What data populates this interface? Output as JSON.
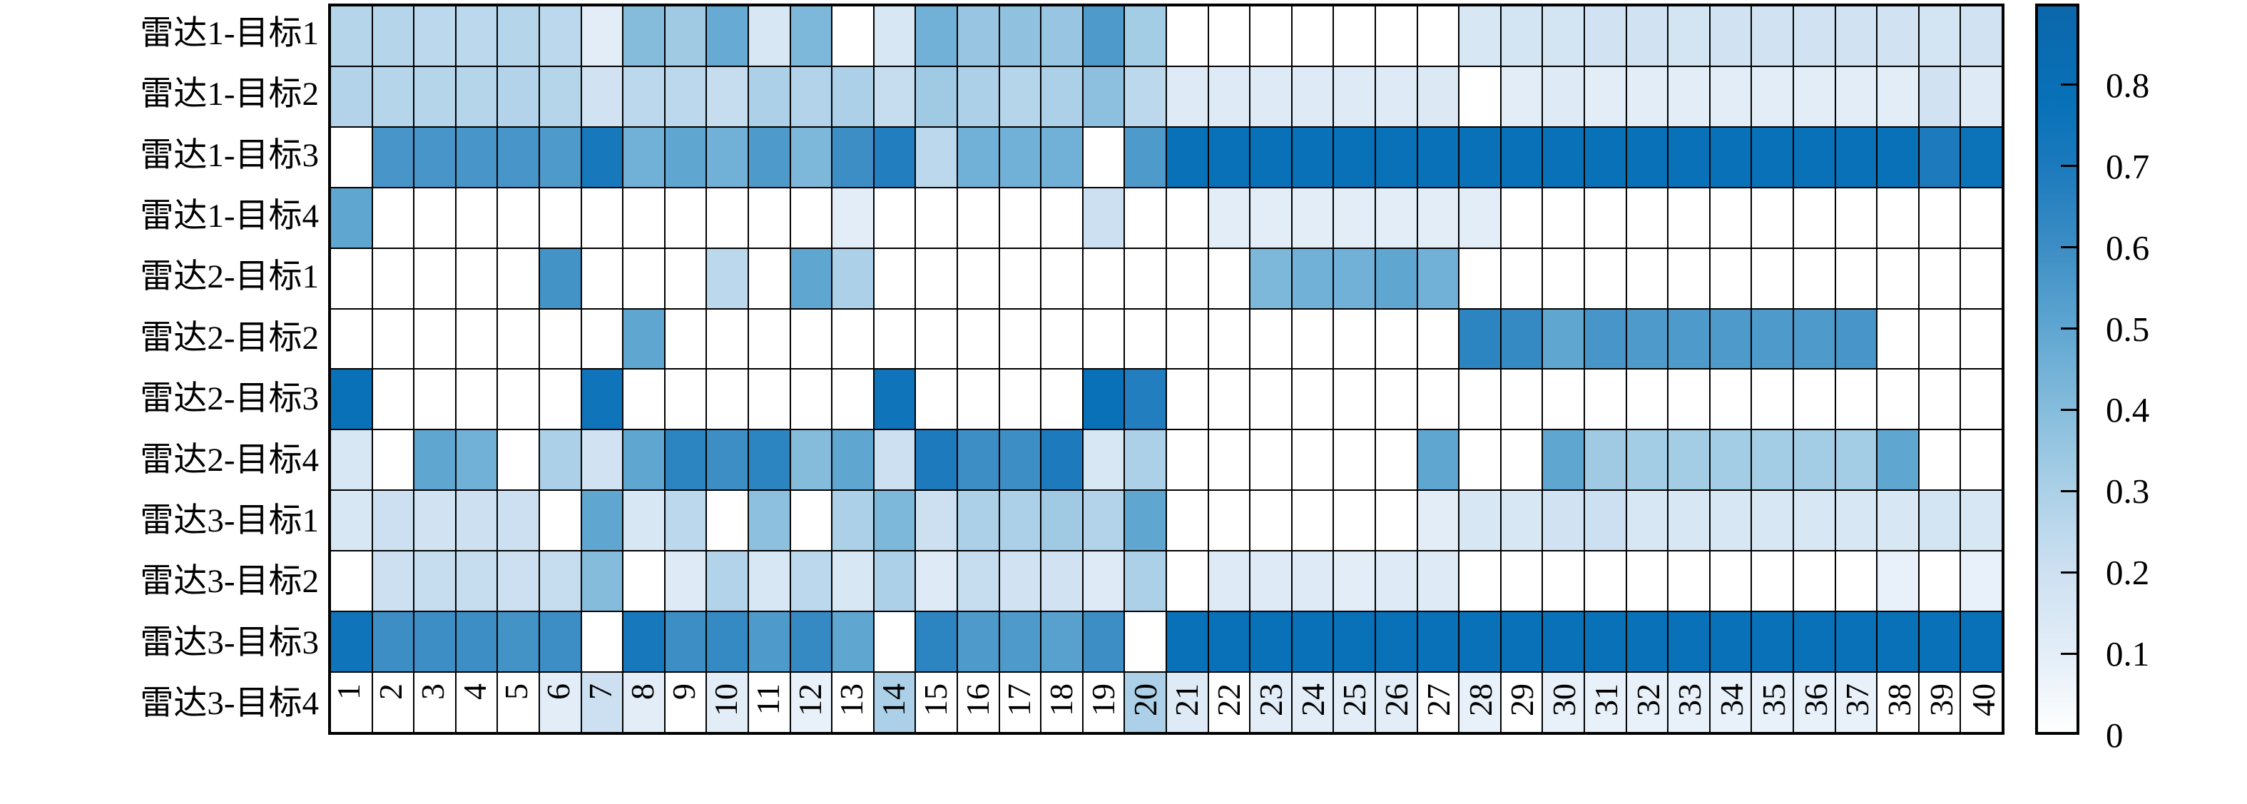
{
  "chart_data": {
    "type": "heatmap",
    "title": "",
    "xlabel": "",
    "ylabel": "",
    "row_labels": [
      "雷达1-目标1",
      "雷达1-目标2",
      "雷达1-目标3",
      "雷达1-目标4",
      "雷达2-目标1",
      "雷达2-目标2",
      "雷达2-目标3",
      "雷达2-目标4",
      "雷达3-目标1",
      "雷达3-目标2",
      "雷达3-目标3",
      "雷达3-目标4"
    ],
    "col_labels": [
      "1",
      "2",
      "3",
      "4",
      "5",
      "6",
      "7",
      "8",
      "9",
      "10",
      "11",
      "12",
      "13",
      "14",
      "15",
      "16",
      "17",
      "18",
      "19",
      "20",
      "21",
      "22",
      "23",
      "24",
      "25",
      "26",
      "27",
      "28",
      "29",
      "30",
      "31",
      "32",
      "33",
      "34",
      "35",
      "36",
      "37",
      "38",
      "39",
      "40"
    ],
    "values": [
      [
        0.27,
        0.27,
        0.25,
        0.25,
        0.27,
        0.25,
        0.1,
        0.4,
        0.33,
        0.48,
        0.15,
        0.42,
        0,
        0.15,
        0.45,
        0.35,
        0.37,
        0.35,
        0.55,
        0.32,
        0,
        0,
        0,
        0,
        0,
        0,
        0,
        0.15,
        0.17,
        0.17,
        0.18,
        0.18,
        0.17,
        0.18,
        0.18,
        0.18,
        0.18,
        0.18,
        0.17,
        0.18
      ],
      [
        0.28,
        0.27,
        0.27,
        0.27,
        0.28,
        0.27,
        0.18,
        0.25,
        0.25,
        0.22,
        0.3,
        0.28,
        0.3,
        0.22,
        0.33,
        0.3,
        0.27,
        0.3,
        0.38,
        0.25,
        0.12,
        0.12,
        0.12,
        0.12,
        0.12,
        0.12,
        0.13,
        0,
        0.1,
        0.12,
        0.1,
        0.1,
        0.1,
        0.1,
        0.1,
        0.1,
        0.1,
        0.1,
        0.18,
        0.12
      ],
      [
        0,
        0.57,
        0.57,
        0.57,
        0.57,
        0.55,
        0.72,
        0.45,
        0.5,
        0.45,
        0.55,
        0.42,
        0.6,
        0.68,
        0.25,
        0.45,
        0.45,
        0.45,
        0,
        0.55,
        0.78,
        0.78,
        0.78,
        0.78,
        0.78,
        0.78,
        0.78,
        0.78,
        0.78,
        0.78,
        0.78,
        0.78,
        0.78,
        0.78,
        0.78,
        0.78,
        0.78,
        0.78,
        0.7,
        0.76
      ],
      [
        0.5,
        0,
        0,
        0,
        0,
        0,
        0,
        0,
        0,
        0,
        0,
        0,
        0.1,
        0,
        0,
        0,
        0,
        0,
        0.2,
        0,
        0,
        0.1,
        0.1,
        0.1,
        0.1,
        0.1,
        0.1,
        0.1,
        0,
        0,
        0,
        0,
        0,
        0,
        0,
        0,
        0,
        0,
        0,
        0
      ],
      [
        0,
        0,
        0,
        0,
        0,
        0.58,
        0,
        0,
        0,
        0.25,
        0,
        0.5,
        0.3,
        0,
        0,
        0,
        0,
        0,
        0,
        0,
        0,
        0,
        0.42,
        0.45,
        0.45,
        0.5,
        0.45,
        0,
        0,
        0,
        0,
        0,
        0,
        0,
        0,
        0,
        0,
        0,
        0,
        0
      ],
      [
        0,
        0,
        0,
        0,
        0,
        0,
        0,
        0.5,
        0,
        0,
        0,
        0,
        0,
        0,
        0,
        0,
        0,
        0,
        0,
        0,
        0,
        0,
        0,
        0,
        0,
        0,
        0,
        0.65,
        0.62,
        0.5,
        0.57,
        0.55,
        0.55,
        0.55,
        0.55,
        0.55,
        0.57,
        0,
        0,
        0
      ],
      [
        0.78,
        0,
        0,
        0,
        0,
        0,
        0.75,
        0,
        0,
        0,
        0,
        0,
        0,
        0.75,
        0,
        0,
        0,
        0,
        0.78,
        0.68,
        0,
        0,
        0,
        0,
        0,
        0,
        0,
        0,
        0,
        0,
        0,
        0,
        0,
        0,
        0,
        0,
        0,
        0,
        0,
        0
      ],
      [
        0.15,
        0,
        0.5,
        0.45,
        0,
        0.3,
        0.18,
        0.5,
        0.65,
        0.6,
        0.65,
        0.4,
        0.5,
        0.2,
        0.7,
        0.6,
        0.6,
        0.7,
        0.15,
        0.3,
        0,
        0,
        0,
        0,
        0,
        0,
        0.5,
        0,
        0,
        0.5,
        0.33,
        0.32,
        0.32,
        0.32,
        0.32,
        0.32,
        0.32,
        0.5,
        0,
        0
      ],
      [
        0.15,
        0.2,
        0.18,
        0.2,
        0.2,
        0,
        0.5,
        0.15,
        0.25,
        0,
        0.38,
        0,
        0.3,
        0.42,
        0.2,
        0.3,
        0.3,
        0.33,
        0.28,
        0.5,
        0,
        0,
        0,
        0,
        0,
        0,
        0.1,
        0.15,
        0.15,
        0.18,
        0.2,
        0.15,
        0.15,
        0.15,
        0.15,
        0.15,
        0.15,
        0.15,
        0.17,
        0.15
      ],
      [
        0,
        0.2,
        0.22,
        0.22,
        0.2,
        0.22,
        0.4,
        0,
        0.12,
        0.28,
        0.15,
        0.25,
        0.15,
        0.3,
        0.12,
        0.22,
        0.18,
        0.18,
        0.12,
        0.3,
        0,
        0.12,
        0.12,
        0.12,
        0.1,
        0.12,
        0.12,
        0,
        0,
        0,
        0,
        0,
        0,
        0,
        0,
        0,
        0,
        0.08,
        0,
        0.08
      ],
      [
        0.75,
        0.6,
        0.6,
        0.6,
        0.58,
        0.6,
        0,
        0.72,
        0.6,
        0.62,
        0.55,
        0.62,
        0.5,
        0,
        0.65,
        0.55,
        0.55,
        0.52,
        0.6,
        0,
        0.78,
        0.78,
        0.78,
        0.78,
        0.78,
        0.78,
        0.78,
        0.78,
        0.78,
        0.78,
        0.78,
        0.78,
        0.78,
        0.78,
        0.78,
        0.78,
        0.78,
        0.78,
        0.78,
        0.78
      ],
      [
        0,
        0,
        0,
        0,
        0,
        0.1,
        0.2,
        0.1,
        0,
        0.1,
        0,
        0.08,
        0,
        0.3,
        0,
        0,
        0,
        0,
        0,
        0.3,
        0.12,
        0,
        0.1,
        0.1,
        0.1,
        0.1,
        0,
        0.08,
        0,
        0.08,
        0.08,
        0.08,
        0.08,
        0.08,
        0.08,
        0.08,
        0.08,
        0,
        0,
        0
      ]
    ],
    "vmin": 0,
    "vmax": 0.9,
    "colorbar": {
      "position": "right",
      "tick_values": [
        0.8,
        0.7,
        0.6,
        0.5,
        0.4,
        0.3,
        0.2,
        0.1,
        0
      ],
      "tick_labels": [
        "0.8",
        "0.7",
        "0.6",
        "0.5",
        "0.4",
        "0.3",
        "0.2",
        "0.1",
        "0"
      ]
    },
    "colormap_anchors": [
      [
        0.0,
        "#ffffff"
      ],
      [
        0.1,
        "#e2edf7"
      ],
      [
        0.2,
        "#cde0f1"
      ],
      [
        0.3,
        "#abd0e7"
      ],
      [
        0.4,
        "#85bcdc"
      ],
      [
        0.5,
        "#5fa6d1"
      ],
      [
        0.6,
        "#3d8ec5"
      ],
      [
        0.7,
        "#1c7abd"
      ],
      [
        0.78,
        "#0871b8"
      ],
      [
        0.9,
        "#0c67ab"
      ]
    ],
    "grid_color": "#000000",
    "background_color": "#ffffff",
    "x_tick_rotation": 90,
    "grid_on": true
  }
}
